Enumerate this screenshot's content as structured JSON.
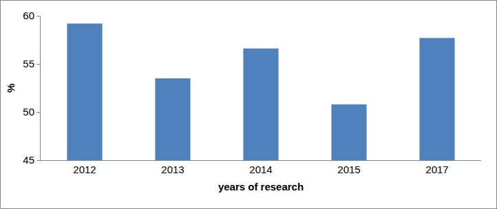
{
  "chart_data": {
    "type": "bar",
    "categories": [
      "2012",
      "2013",
      "2014",
      "2015",
      "2017"
    ],
    "values": [
      59.2,
      53.5,
      56.6,
      50.8,
      57.7
    ],
    "color": "#4f81bd",
    "x_label": "years of research",
    "y_label": "%",
    "ylim": [
      45,
      60
    ],
    "yticks": [
      45,
      50,
      55,
      60
    ],
    "grid": false,
    "data_labels": true
  }
}
